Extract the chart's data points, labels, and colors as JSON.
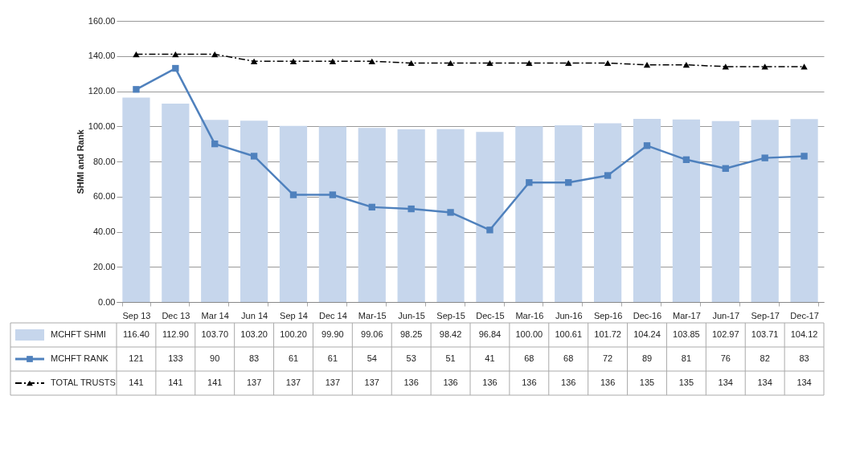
{
  "chart_data": {
    "type": "bar",
    "ylabel": "SHMI and Rank",
    "categories": [
      "Sep 13",
      "Dec 13",
      "Mar 14",
      "Jun 14",
      "Sep 14",
      "Dec 14",
      "Mar-15",
      "Jun-15",
      "Sep-15",
      "Dec-15",
      "Mar-16",
      "Jun-16",
      "Sep-16",
      "Dec-16",
      "Mar-17",
      "Jun-17",
      "Sep-17",
      "Dec-17"
    ],
    "series": [
      {
        "name": "MCHFT SHMI",
        "color": "#c6d6ec",
        "values": [
          116.4,
          112.9,
          103.7,
          103.2,
          100.2,
          99.9,
          99.06,
          98.25,
          98.42,
          96.84,
          100.0,
          100.61,
          101.72,
          104.24,
          103.85,
          102.97,
          103.71,
          104.12
        ],
        "value_labels": [
          "116.40",
          "112.90",
          "103.70",
          "103.20",
          "100.20",
          "99.90",
          "99.06",
          "98.25",
          "98.42",
          "96.84",
          "100.00",
          "100.61",
          "101.72",
          "104.24",
          "103.85",
          "102.97",
          "103.71",
          "104.12"
        ]
      },
      {
        "name": "MCHFT RANK",
        "type": "line",
        "color": "#4f81bd",
        "marker": "square",
        "line_style": "solid",
        "values": [
          121,
          133,
          90,
          83,
          61,
          61,
          54,
          53,
          51,
          41,
          68,
          68,
          72,
          89,
          81,
          76,
          82,
          83
        ],
        "value_labels": [
          "121",
          "133",
          "90",
          "83",
          "61",
          "61",
          "54",
          "53",
          "51",
          "41",
          "68",
          "68",
          "72",
          "89",
          "81",
          "76",
          "82",
          "83"
        ]
      },
      {
        "name": "TOTAL TRUSTS",
        "type": "line",
        "color": "#000000",
        "marker": "triangle",
        "line_style": "dashed",
        "values": [
          141,
          141,
          141,
          137,
          137,
          137,
          137,
          136,
          136,
          136,
          136,
          136,
          136,
          135,
          135,
          134,
          134,
          134
        ],
        "value_labels": [
          "141",
          "141",
          "141",
          "137",
          "137",
          "137",
          "137",
          "136",
          "136",
          "136",
          "136",
          "136",
          "136",
          "135",
          "135",
          "134",
          "134",
          "134"
        ]
      }
    ],
    "ylim": [
      0,
      160
    ],
    "yticks": [
      {
        "value": 0,
        "label": "0.00"
      },
      {
        "value": 20,
        "label": "20.00"
      },
      {
        "value": 40,
        "label": "40.00"
      },
      {
        "value": 60,
        "label": "60.00"
      },
      {
        "value": 80,
        "label": "80.00"
      },
      {
        "value": 100,
        "label": "100.00"
      },
      {
        "value": 120,
        "label": "120.00"
      },
      {
        "value": 140,
        "label": "140.00"
      },
      {
        "value": 160,
        "label": "160.00"
      }
    ],
    "grid": "y",
    "legend": "bottom"
  }
}
